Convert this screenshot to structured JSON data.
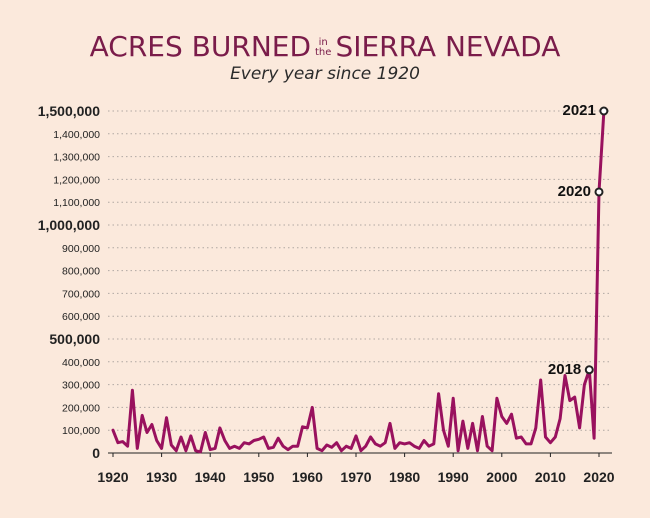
{
  "title": {
    "part1": "ACRES BURNED",
    "small1": "in",
    "small2": "the",
    "part2": "SIERRA NEVADA"
  },
  "subtitle": "Every year since 1920",
  "colors": {
    "background": "#fbe9dc",
    "line": "#99115e",
    "title": "#7a1c4a",
    "grid": "#b0a8a2"
  },
  "chart_data": {
    "type": "line",
    "grid": "horizontal dotted",
    "xlim": [
      1920,
      2021
    ],
    "ylim": [
      0,
      1500000
    ],
    "x_ticks": [
      "1920",
      "1930",
      "1940",
      "1950",
      "1960",
      "1970",
      "1980",
      "1990",
      "2000",
      "2010",
      "2020"
    ],
    "y_ticks": [
      {
        "label": "0",
        "value": 0,
        "major": true
      },
      {
        "label": "100,000",
        "value": 100000,
        "major": false
      },
      {
        "label": "200,000",
        "value": 200000,
        "major": false
      },
      {
        "label": "300,000",
        "value": 300000,
        "major": false
      },
      {
        "label": "400,000",
        "value": 400000,
        "major": false
      },
      {
        "label": "500,000",
        "value": 500000,
        "major": true
      },
      {
        "label": "600,000",
        "value": 600000,
        "major": false
      },
      {
        "label": "700,000",
        "value": 700000,
        "major": false
      },
      {
        "label": "800,000",
        "value": 800000,
        "major": false
      },
      {
        "label": "900,000",
        "value": 900000,
        "major": false
      },
      {
        "label": "1,000,000",
        "value": 1000000,
        "major": true
      },
      {
        "label": "1,100,000",
        "value": 1100000,
        "major": false
      },
      {
        "label": "1,200,000",
        "value": 1200000,
        "major": false
      },
      {
        "label": "1,300,000",
        "value": 1300000,
        "major": false
      },
      {
        "label": "1,400,000",
        "value": 1400000,
        "major": false
      },
      {
        "label": "1,500,000",
        "value": 1500000,
        "major": true
      }
    ],
    "series": [
      {
        "x": [
          1920,
          1921,
          1922,
          1923,
          1924,
          1925,
          1926,
          1927,
          1928,
          1929,
          1930,
          1931,
          1932,
          1933,
          1934,
          1935,
          1936,
          1937,
          1938,
          1939,
          1940,
          1941,
          1942,
          1943,
          1944,
          1945,
          1946,
          1947,
          1948,
          1949,
          1950,
          1951,
          1952,
          1953,
          1954,
          1955,
          1956,
          1957,
          1958,
          1959,
          1960,
          1961,
          1962,
          1963,
          1964,
          1965,
          1966,
          1967,
          1968,
          1969,
          1970,
          1971,
          1972,
          1973,
          1974,
          1975,
          1976,
          1977,
          1978,
          1979,
          1980,
          1981,
          1982,
          1983,
          1984,
          1985,
          1986,
          1987,
          1988,
          1989,
          1990,
          1991,
          1992,
          1993,
          1994,
          1995,
          1996,
          1997,
          1998,
          1999,
          2000,
          2001,
          2002,
          2003,
          2004,
          2005,
          2006,
          2007,
          2008,
          2009,
          2010,
          2011,
          2012,
          2013,
          2014,
          2015,
          2016,
          2017,
          2018,
          2019,
          2020,
          2021
        ],
        "y": [
          100000,
          45000,
          50000,
          30000,
          275000,
          20000,
          165000,
          90000,
          125000,
          55000,
          20000,
          155000,
          35000,
          10000,
          70000,
          10000,
          75000,
          10000,
          5000,
          90000,
          15000,
          20000,
          110000,
          55000,
          20000,
          30000,
          20000,
          45000,
          40000,
          55000,
          60000,
          70000,
          20000,
          25000,
          65000,
          30000,
          15000,
          30000,
          30000,
          115000,
          110000,
          200000,
          20000,
          10000,
          35000,
          25000,
          45000,
          10000,
          30000,
          20000,
          75000,
          10000,
          30000,
          70000,
          40000,
          30000,
          45000,
          130000,
          20000,
          45000,
          40000,
          45000,
          30000,
          20000,
          55000,
          30000,
          40000,
          260000,
          100000,
          30000,
          240000,
          10000,
          140000,
          20000,
          130000,
          10000,
          160000,
          30000,
          10000,
          240000,
          160000,
          130000,
          170000,
          65000,
          70000,
          40000,
          40000,
          110000,
          320000,
          70000,
          45000,
          70000,
          150000,
          340000,
          230000,
          245000,
          110000,
          300000,
          365000,
          65000,
          1145000,
          1500000
        ]
      }
    ],
    "annotations": [
      {
        "label": "2018",
        "x": 2018,
        "y": 365000
      },
      {
        "label": "2020",
        "x": 2020,
        "y": 1145000
      },
      {
        "label": "2021",
        "x": 2021,
        "y": 1500000
      }
    ]
  }
}
